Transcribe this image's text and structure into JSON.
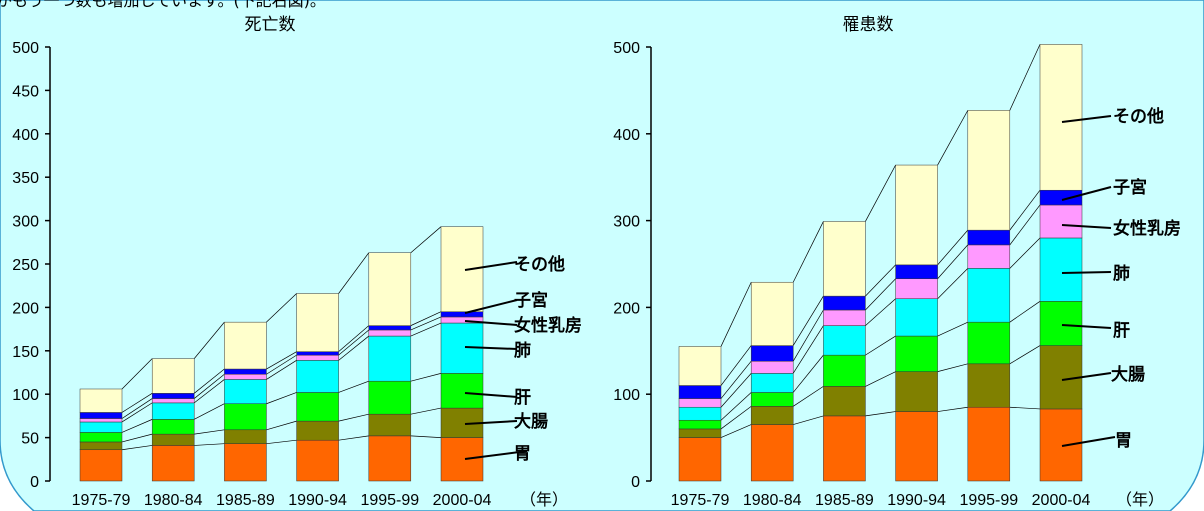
{
  "header_fragment": "がもう一つ数も増加しています。(下記右図)。",
  "x_unit": "（年）",
  "colors": {
    "panel_bg": "#ccffff",
    "panel_border": "#3399cc",
    "stomach": "#ff6600",
    "colon": "#808000",
    "liver": "#00ff00",
    "lung": "#00ffff",
    "breast": "#ff99ff",
    "uterus": "#0000ff",
    "other": "#ffffcc"
  },
  "chart_data": [
    {
      "type": "bar",
      "stacked": true,
      "title": "死亡数",
      "categories": [
        "1975-79",
        "1980-84",
        "1985-89",
        "1990-94",
        "1995-99",
        "2000-04"
      ],
      "ylim": [
        0,
        500
      ],
      "yticks": [
        0,
        50,
        100,
        150,
        200,
        250,
        300,
        350,
        400,
        450,
        500
      ],
      "series": [
        {
          "name": "胃",
          "values": [
            36,
            41,
            43,
            47,
            52,
            50
          ]
        },
        {
          "name": "大腸",
          "values": [
            9,
            13,
            16,
            22,
            25,
            34
          ]
        },
        {
          "name": "肝",
          "values": [
            11,
            17,
            30,
            33,
            38,
            40
          ]
        },
        {
          "name": "肺",
          "values": [
            12,
            19,
            28,
            37,
            52,
            58
          ]
        },
        {
          "name": "女性乳房",
          "values": [
            4,
            5,
            6,
            6,
            7,
            7
          ]
        },
        {
          "name": "子宮",
          "values": [
            7,
            6,
            6,
            4,
            5,
            6
          ]
        },
        {
          "name": "その他",
          "values": [
            27,
            40,
            54,
            67,
            84,
            98
          ]
        }
      ]
    },
    {
      "type": "bar",
      "stacked": true,
      "title": "罹患数",
      "categories": [
        "1975-79",
        "1980-84",
        "1985-89",
        "1990-94",
        "1995-99",
        "2000-04"
      ],
      "ylim": [
        0,
        500
      ],
      "yticks": [
        0,
        100,
        200,
        300,
        400,
        500
      ],
      "series": [
        {
          "name": "胃",
          "values": [
            50,
            65,
            75,
            80,
            85,
            83
          ]
        },
        {
          "name": "大腸",
          "values": [
            10,
            21,
            34,
            46,
            50,
            73
          ]
        },
        {
          "name": "肝",
          "values": [
            10,
            16,
            36,
            41,
            48,
            51
          ]
        },
        {
          "name": "肺",
          "values": [
            15,
            22,
            34,
            43,
            62,
            73
          ]
        },
        {
          "name": "女性乳房",
          "values": [
            10,
            14,
            18,
            23,
            27,
            38
          ]
        },
        {
          "name": "子宮",
          "values": [
            15,
            18,
            16,
            16,
            17,
            17
          ]
        },
        {
          "name": "その他",
          "values": [
            45,
            73,
            86,
            115,
            138,
            168
          ]
        }
      ]
    }
  ]
}
